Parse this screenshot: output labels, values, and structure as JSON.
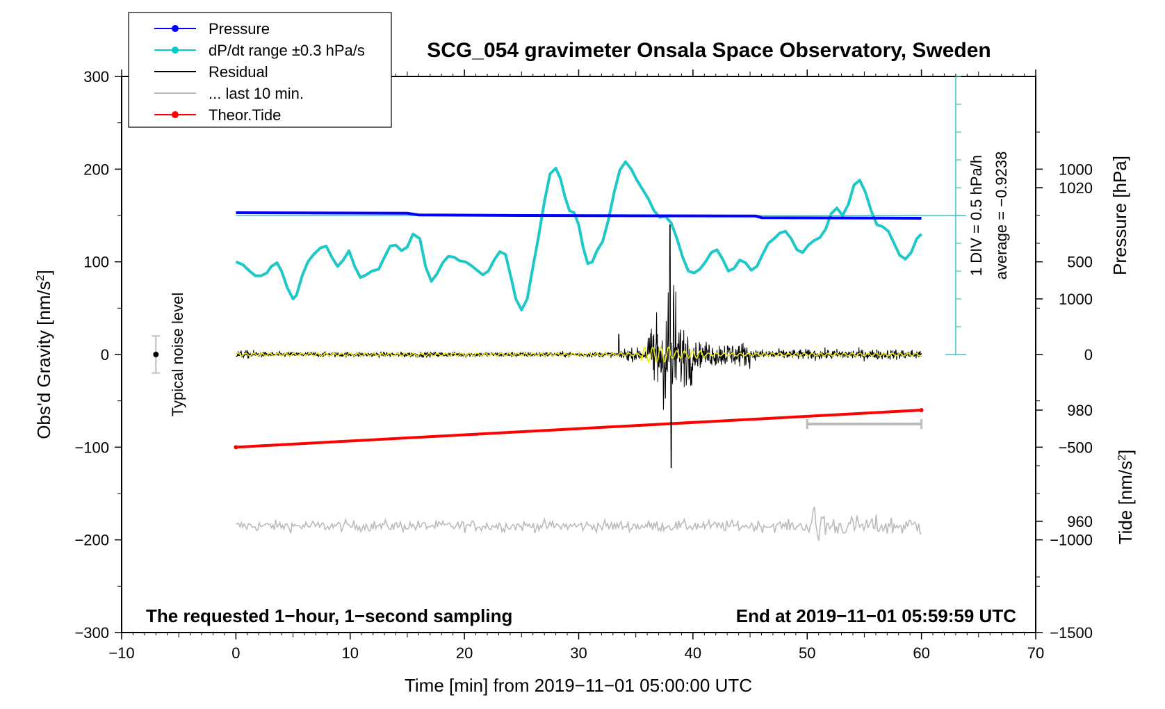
{
  "chart_data": {
    "type": "line",
    "title": "SCG_054 gravimeter Onsala Space Observatory, Sweden",
    "xlabel": "Time [min] from 2019−11−01 05:00:00 UTC",
    "ylabel_left": "Obs'd Gravity [nm/s",
    "ylabel_left_sup": "2",
    "ylabel_left_end": "]",
    "ylabel_right_pressure": "Pressure [hPa]",
    "ylabel_right_tide": "Tide [nm/s",
    "ylabel_right_tide_sup": "2",
    "ylabel_right_tide_end": "]",
    "xlim": [
      -10,
      70
    ],
    "ylim_left": [
      -300,
      300
    ],
    "ylim_pressure": [
      940,
      1040
    ],
    "ylim_tide": [
      -1500,
      1500
    ],
    "x_ticks": [
      {
        "v": -10,
        "label": "−10"
      },
      {
        "v": 0,
        "label": "0"
      },
      {
        "v": 10,
        "label": "10"
      },
      {
        "v": 20,
        "label": "20"
      },
      {
        "v": 30,
        "label": "30"
      },
      {
        "v": 40,
        "label": "40"
      },
      {
        "v": 50,
        "label": "50"
      },
      {
        "v": 60,
        "label": "60"
      },
      {
        "v": 70,
        "label": "70"
      }
    ],
    "y_left_ticks": [
      {
        "v": 300,
        "label": "300"
      },
      {
        "v": 200,
        "label": "200"
      },
      {
        "v": 100,
        "label": "100"
      },
      {
        "v": 0,
        "label": "0"
      },
      {
        "v": -100,
        "label": "−100"
      },
      {
        "v": -200,
        "label": "−200"
      },
      {
        "v": -300,
        "label": "−300"
      }
    ],
    "pressure_ticks": [
      {
        "v": 1020,
        "label": "1020"
      },
      {
        "v": 1000,
        "label": "1000"
      },
      {
        "v": 980,
        "label": "980"
      },
      {
        "v": 960,
        "label": "960"
      }
    ],
    "tide_ticks": [
      {
        "v": 1000,
        "label": "1000"
      },
      {
        "v": 500,
        "label": "500"
      },
      {
        "v": 0,
        "label": "0"
      },
      {
        "v": -500,
        "label": "−500"
      },
      {
        "v": -1000,
        "label": "−1000"
      },
      {
        "v": -1500,
        "label": "−1500"
      }
    ],
    "legend": [
      {
        "label": "Pressure",
        "color": "#0000ff",
        "marker": true
      },
      {
        "label": "dP/dt range ±0.3 hPa/s",
        "color": "#00cccc",
        "marker": true
      },
      {
        "label": "Residual",
        "color": "#000000",
        "marker": false
      },
      {
        "label": "... last 10 min.",
        "color": "#bbbbbb",
        "marker": false
      },
      {
        "label": "Theor.Tide",
        "color": "#ff0000",
        "marker": true
      }
    ],
    "pressure_series": {
      "name": "Pressure",
      "color": "#0000ff",
      "x": [
        0,
        15,
        16,
        25,
        45.5,
        46,
        60
      ],
      "y": [
        1015.5,
        1015.4,
        1015.1,
        1015.0,
        1014.9,
        1014.6,
        1014.5
      ]
    },
    "dpdt_series": {
      "name": "dP/dt",
      "color": "#1fc8c8",
      "x": [
        0,
        0.6,
        1.2,
        1.7,
        2.2,
        2.7,
        3.1,
        3.6,
        4.0,
        4.5,
        5.0,
        5.3,
        5.8,
        6.3,
        6.8,
        7.4,
        7.9,
        8.4,
        8.9,
        9.4,
        9.9,
        10.4,
        10.9,
        11.4,
        11.9,
        12.5,
        13.0,
        13.5,
        14.0,
        14.5,
        15.0,
        15.5,
        16.1,
        16.6,
        17.1,
        17.6,
        18.1,
        18.6,
        19.1,
        19.6,
        20.1,
        20.6,
        21.1,
        21.6,
        22.1,
        22.6,
        23.1,
        23.6,
        24.1,
        24.5,
        25.0,
        25.5,
        26.0,
        26.5,
        27.0,
        27.5,
        28.0,
        28.4,
        28.8,
        29.2,
        29.6,
        30.0,
        30.4,
        30.8,
        31.2,
        31.6,
        32.1,
        32.6,
        33.1,
        33.6,
        34.1,
        34.6,
        35.1,
        35.6,
        36.1,
        36.6,
        37.1,
        37.6,
        38.1,
        38.6,
        39.1,
        39.6,
        40.1,
        40.6,
        41.1,
        41.6,
        42.1,
        42.6,
        43.1,
        43.6,
        44.1,
        44.6,
        45.1,
        45.6,
        46.1,
        46.6,
        47.1,
        47.6,
        48.1,
        48.6,
        49.1,
        49.6,
        50.1,
        50.6,
        51.1,
        51.6,
        52.1,
        52.6,
        53.1,
        53.6,
        54.1,
        54.6,
        55.1,
        55.6,
        56.1,
        56.6,
        57.1,
        57.6,
        58.1,
        58.6,
        59.1,
        59.6,
        60.0
      ],
      "y": [
        100,
        97,
        90,
        85,
        85,
        88,
        95,
        99,
        90,
        72,
        60,
        64,
        85,
        100,
        108,
        115,
        117,
        105,
        95,
        102,
        112,
        95,
        83,
        86,
        90,
        92,
        105,
        117,
        118,
        112,
        116,
        130,
        125,
        95,
        79,
        87,
        99,
        106,
        105,
        101,
        100,
        96,
        91,
        86,
        90,
        102,
        111,
        108,
        82,
        60,
        48,
        60,
        95,
        128,
        165,
        195,
        201,
        190,
        170,
        155,
        153,
        140,
        115,
        98,
        100,
        112,
        122,
        145,
        175,
        199,
        208,
        200,
        188,
        178,
        168,
        155,
        148,
        149,
        142,
        125,
        105,
        90,
        88,
        92,
        100,
        110,
        113,
        103,
        90,
        93,
        102,
        99,
        91,
        95,
        108,
        120,
        125,
        131,
        133,
        125,
        113,
        110,
        118,
        123,
        126,
        135,
        152,
        158,
        150,
        162,
        183,
        188,
        175,
        155,
        140,
        138,
        133,
        120,
        107,
        103,
        110,
        125,
        130
      ]
    },
    "dpdt_range_line": {
      "value_left": 150,
      "label": "1 DIV = 0.5 hPa/h",
      "average_label": "average = −0.9238"
    },
    "residual_series": {
      "name": "Residual",
      "color": "#000000",
      "x_start": 0,
      "x_end": 60,
      "quake_onset_min": 33.5,
      "peak_min": 38.0,
      "peak_max": 140,
      "peak_min_value": -122
    },
    "filtered_series": {
      "name": "Filtered",
      "color": "#e8e800"
    },
    "last10_series": {
      "name": "... last 10 min.",
      "color": "#bbbbbb",
      "offset_left": -185,
      "x_start": 0,
      "x_end": 60
    },
    "last10_bar": {
      "x_start": 50,
      "x_end": 60,
      "y_left": -75
    },
    "tide_series": {
      "name": "Theor.Tide",
      "color": "#ff0000",
      "x": [
        0,
        60
      ],
      "y": [
        -500,
        -300
      ]
    },
    "noise_level": {
      "x": -7,
      "center": 0,
      "low": -20,
      "high": 20,
      "label": "Typical noise level"
    },
    "note_left": "The requested 1−hour, 1−second sampling",
    "note_right": "End at 2019−11−01 05:59:59 UTC"
  }
}
